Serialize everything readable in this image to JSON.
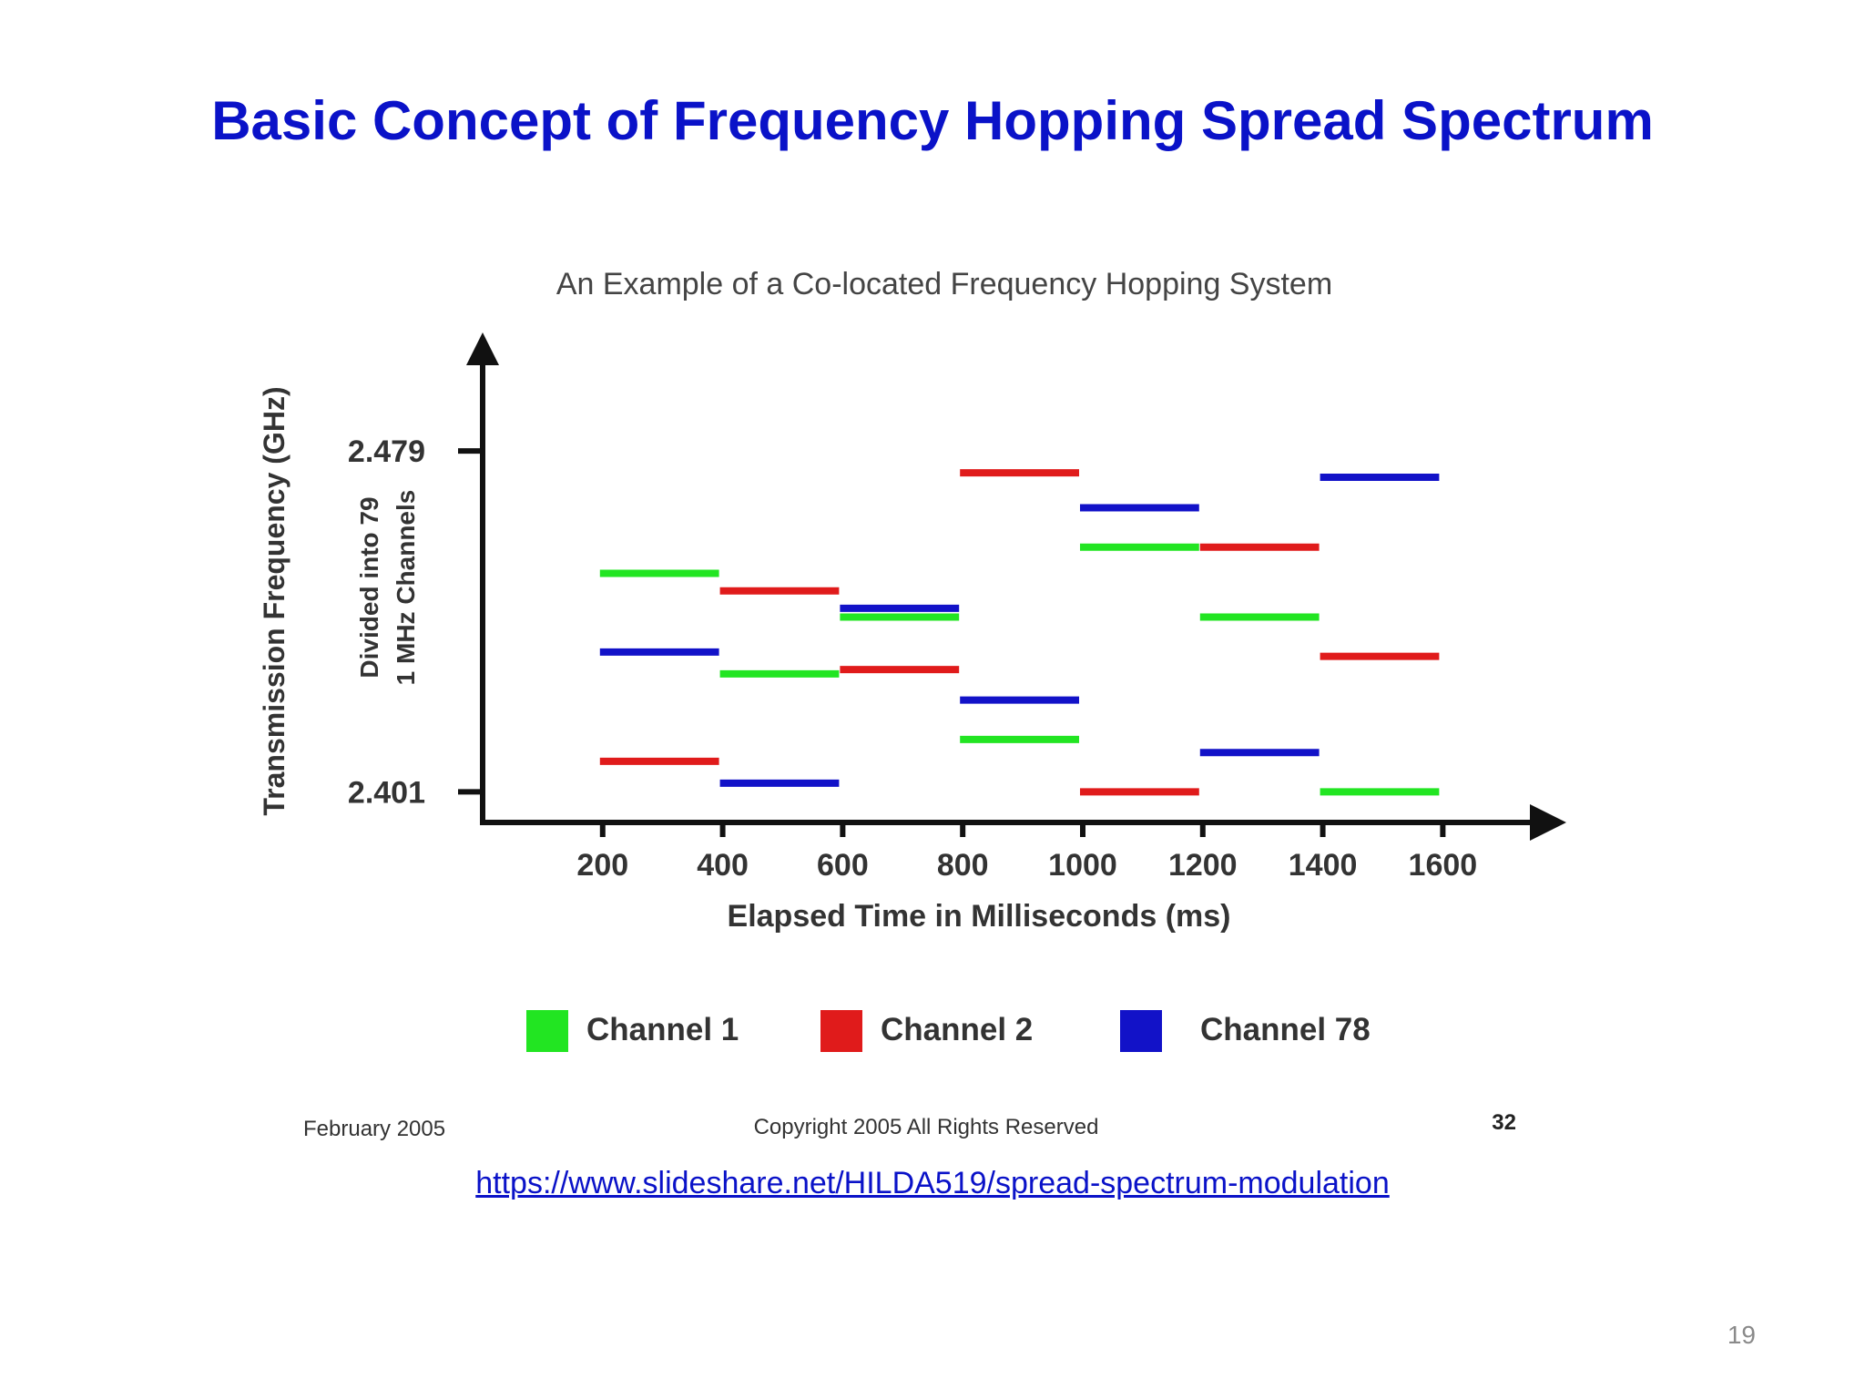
{
  "slide": {
    "title": "Basic Concept of Frequency Hopping Spread Spectrum",
    "link": "https://www.slideshare.net/HILDA519/spread-spectrum-modulation",
    "page_number": "19"
  },
  "figure": {
    "footer_left": "February 2005",
    "footer_center": "Copyright 2005 All Rights Reserved",
    "footer_right": "32"
  },
  "chart_data": {
    "type": "gantt",
    "title": "An Example of a Co-located Frequency Hopping System",
    "xlabel": "Elapsed Time in Milliseconds (ms)",
    "ylabel": "Transmission Frequency (GHz)",
    "ylabel_sub": [
      "Divided into 79",
      "1 MHz Channels"
    ],
    "x_ticks": [
      "200",
      "400",
      "600",
      "800",
      "1000",
      "1200",
      "1400",
      "1600"
    ],
    "x_tick_values": [
      200,
      400,
      600,
      800,
      1000,
      1200,
      1400,
      1600
    ],
    "y_ticks": [
      "2.479",
      "2.401"
    ],
    "y_tick_values": [
      2.479,
      2.401
    ],
    "xlim": [
      0,
      1780
    ],
    "ylim": [
      2.394,
      2.503
    ],
    "series": [
      {
        "name": "Channel 1",
        "color": "#22e522",
        "segments": [
          {
            "start": 200,
            "end": 400,
            "freq": 2.451
          },
          {
            "start": 400,
            "end": 600,
            "freq": 2.428
          },
          {
            "start": 600,
            "end": 800,
            "freq": 2.441
          },
          {
            "start": 800,
            "end": 1000,
            "freq": 2.413
          },
          {
            "start": 1000,
            "end": 1200,
            "freq": 2.457
          },
          {
            "start": 1200,
            "end": 1400,
            "freq": 2.441
          },
          {
            "start": 1400,
            "end": 1600,
            "freq": 2.401
          }
        ]
      },
      {
        "name": "Channel 2",
        "color": "#e01b1b",
        "segments": [
          {
            "start": 200,
            "end": 400,
            "freq": 2.408
          },
          {
            "start": 400,
            "end": 600,
            "freq": 2.447
          },
          {
            "start": 600,
            "end": 800,
            "freq": 2.429
          },
          {
            "start": 800,
            "end": 1000,
            "freq": 2.474
          },
          {
            "start": 1000,
            "end": 1200,
            "freq": 2.401
          },
          {
            "start": 1200,
            "end": 1400,
            "freq": 2.457
          },
          {
            "start": 1400,
            "end": 1600,
            "freq": 2.432
          }
        ]
      },
      {
        "name": "Channel 78",
        "color": "#1212c8",
        "segments": [
          {
            "start": 200,
            "end": 400,
            "freq": 2.433
          },
          {
            "start": 400,
            "end": 600,
            "freq": 2.403
          },
          {
            "start": 600,
            "end": 800,
            "freq": 2.443
          },
          {
            "start": 800,
            "end": 1000,
            "freq": 2.422
          },
          {
            "start": 1000,
            "end": 1200,
            "freq": 2.466
          },
          {
            "start": 1200,
            "end": 1400,
            "freq": 2.41
          },
          {
            "start": 1400,
            "end": 1600,
            "freq": 2.473
          }
        ]
      }
    ],
    "legend": [
      "Channel 1",
      "Channel 2",
      "Channel 78"
    ],
    "legend_position": "bottom"
  }
}
